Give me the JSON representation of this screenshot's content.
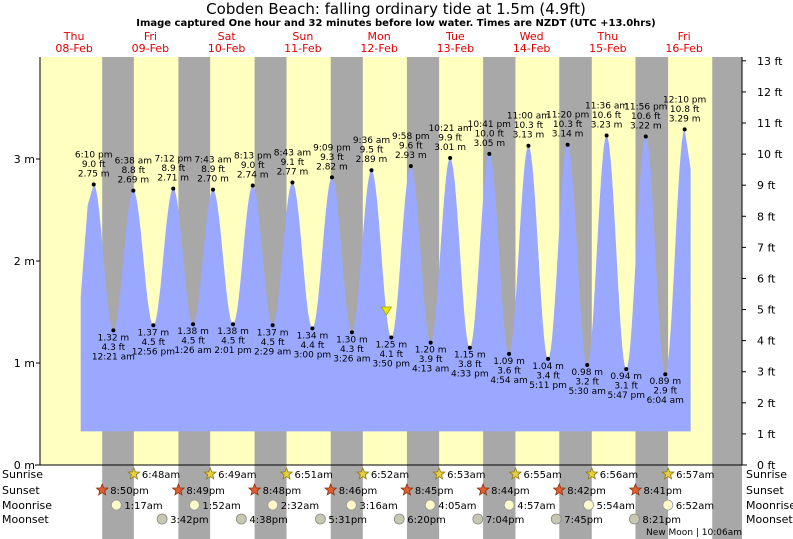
{
  "title": "Cobden Beach: falling  ordinary tide at 1.5m (4.9ft)",
  "subtitle": "Image captured One hour and 32 minutes before low water. Times are NZDT (UTC +13.0hrs)",
  "colors": {
    "day": "#ffffc0",
    "night": "#a8a8a8",
    "water": "#9aa9ff",
    "day_label": "#e00000"
  },
  "days": [
    {
      "name": "Thu",
      "date": "08-Feb"
    },
    {
      "name": "Fri",
      "date": "09-Feb"
    },
    {
      "name": "Sat",
      "date": "10-Feb"
    },
    {
      "name": "Sun",
      "date": "11-Feb"
    },
    {
      "name": "Mon",
      "date": "12-Feb"
    },
    {
      "name": "Tue",
      "date": "13-Feb"
    },
    {
      "name": "Wed",
      "date": "14-Feb"
    },
    {
      "name": "Thu",
      "date": "15-Feb"
    },
    {
      "name": "Fri",
      "date": "16-Feb"
    }
  ],
  "chart_data": {
    "type": "area",
    "x_axis": "time (days from 08-Feb 00:00 NZDT)",
    "y_left": {
      "unit": "m",
      "ticks": [
        "0 m",
        "1 m",
        "2 m",
        "3 m"
      ]
    },
    "y_right": {
      "unit": "ft",
      "ticks": [
        "0 ft",
        "1 ft",
        "2 ft",
        "3 ft",
        "4 ft",
        "5 ft",
        "6 ft",
        "7 ft",
        "8 ft",
        "9 ft",
        "10 ft",
        "11 ft",
        "12 ft",
        "13 ft"
      ]
    },
    "ylim_m": [
      0,
      4.0
    ],
    "current": {
      "time": "12-Feb 2:18pm",
      "height_m": 1.5
    },
    "tides": [
      {
        "type": "high",
        "time": "6:10 pm",
        "day": 0,
        "m": "2.75 m",
        "ft": "9.0 ft",
        "val": 2.75
      },
      {
        "type": "low",
        "time": "12:21 am",
        "day": 1,
        "m": "1.32 m",
        "ft": "4.3 ft",
        "val": 1.32
      },
      {
        "type": "high",
        "time": "6:38 am",
        "day": 1,
        "m": "2.69 m",
        "ft": "8.8 ft",
        "val": 2.69
      },
      {
        "type": "low",
        "time": "12:56 pm",
        "day": 1,
        "m": "1.37 m",
        "ft": "4.5 ft",
        "val": 1.37
      },
      {
        "type": "high",
        "time": "7:12 pm",
        "day": 1,
        "m": "2.71 m",
        "ft": "8.9 ft",
        "val": 2.71
      },
      {
        "type": "low",
        "time": "1:26 am",
        "day": 2,
        "m": "1.38 m",
        "ft": "4.5 ft",
        "val": 1.38
      },
      {
        "type": "high",
        "time": "7:43 am",
        "day": 2,
        "m": "2.70 m",
        "ft": "8.9 ft",
        "val": 2.7
      },
      {
        "type": "low",
        "time": "2:01 pm",
        "day": 2,
        "m": "1.38 m",
        "ft": "4.5 ft",
        "val": 1.38
      },
      {
        "type": "high",
        "time": "8:13 pm",
        "day": 2,
        "m": "2.74 m",
        "ft": "9.0 ft",
        "val": 2.74
      },
      {
        "type": "low",
        "time": "2:29 am",
        "day": 3,
        "m": "1.37 m",
        "ft": "4.5 ft",
        "val": 1.37
      },
      {
        "type": "high",
        "time": "8:43 am",
        "day": 3,
        "m": "2.77 m",
        "ft": "9.1 ft",
        "val": 2.77
      },
      {
        "type": "low",
        "time": "3:00 pm",
        "day": 3,
        "m": "1.34 m",
        "ft": "4.4 ft",
        "val": 1.34
      },
      {
        "type": "high",
        "time": "9:09 pm",
        "day": 3,
        "m": "2.82 m",
        "ft": "9.3 ft",
        "val": 2.82
      },
      {
        "type": "low",
        "time": "3:26 am",
        "day": 4,
        "m": "1.30 m",
        "ft": "4.3 ft",
        "val": 1.3
      },
      {
        "type": "high",
        "time": "9:36 am",
        "day": 4,
        "m": "2.89 m",
        "ft": "9.5 ft",
        "val": 2.89
      },
      {
        "type": "low",
        "time": "3:50 pm",
        "day": 4,
        "m": "1.25 m",
        "ft": "4.1 ft",
        "val": 1.25
      },
      {
        "type": "high",
        "time": "9:58 pm",
        "day": 4,
        "m": "2.93 m",
        "ft": "9.6 ft",
        "val": 2.93
      },
      {
        "type": "low",
        "time": "4:13 am",
        "day": 5,
        "m": "1.20 m",
        "ft": "3.9 ft",
        "val": 1.2
      },
      {
        "type": "high",
        "time": "10:21 am",
        "day": 5,
        "m": "3.01 m",
        "ft": "9.9 ft",
        "val": 3.01
      },
      {
        "type": "low",
        "time": "4:33 pm",
        "day": 5,
        "m": "1.15 m",
        "ft": "3.8 ft",
        "val": 1.15
      },
      {
        "type": "high",
        "time": "10:41 pm",
        "day": 5,
        "m": "3.05 m",
        "ft": "10.0 ft",
        "val": 3.05
      },
      {
        "type": "low",
        "time": "4:54 am",
        "day": 6,
        "m": "1.09 m",
        "ft": "3.6 ft",
        "val": 1.09
      },
      {
        "type": "high",
        "time": "11:00 am",
        "day": 6,
        "m": "3.13 m",
        "ft": "10.3 ft",
        "val": 3.13
      },
      {
        "type": "low",
        "time": "5:11 pm",
        "day": 6,
        "m": "1.04 m",
        "ft": "3.4 ft",
        "val": 1.04
      },
      {
        "type": "high",
        "time": "11:20 pm",
        "day": 6,
        "m": "3.14 m",
        "ft": "10.3 ft",
        "val": 3.14
      },
      {
        "type": "low",
        "time": "5:30 am",
        "day": 7,
        "m": "0.98 m",
        "ft": "3.2 ft",
        "val": 0.98
      },
      {
        "type": "high",
        "time": "11:36 am",
        "day": 7,
        "m": "3.23 m",
        "ft": "10.6 ft",
        "val": 3.23
      },
      {
        "type": "low",
        "time": "5:47 pm",
        "day": 7,
        "m": "0.94 m",
        "ft": "3.1 ft",
        "val": 0.94
      },
      {
        "type": "high",
        "time": "11:56 pm",
        "day": 7,
        "m": "3.22 m",
        "ft": "10.6 ft",
        "val": 3.22
      },
      {
        "type": "low",
        "time": "6:04 am",
        "day": 8,
        "m": "0.89 m",
        "ft": "2.9 ft",
        "val": 0.89
      },
      {
        "type": "high",
        "time": "12:10 pm",
        "day": 8,
        "m": "3.29 m",
        "ft": "10.8 ft",
        "val": 3.29
      }
    ]
  },
  "rows": {
    "labels": [
      "Sunrise",
      "Sunset",
      "Moonrise",
      "Moonset"
    ],
    "sunrise": [
      {
        "day": 1,
        "time": "6:48am"
      },
      {
        "day": 2,
        "time": "6:49am"
      },
      {
        "day": 3,
        "time": "6:51am"
      },
      {
        "day": 4,
        "time": "6:52am"
      },
      {
        "day": 5,
        "time": "6:53am"
      },
      {
        "day": 6,
        "time": "6:55am"
      },
      {
        "day": 7,
        "time": "6:56am"
      },
      {
        "day": 8,
        "time": "6:57am"
      }
    ],
    "sunset": [
      {
        "day": 0,
        "time": "8:50pm"
      },
      {
        "day": 1,
        "time": "8:49pm"
      },
      {
        "day": 2,
        "time": "8:48pm"
      },
      {
        "day": 3,
        "time": "8:46pm"
      },
      {
        "day": 4,
        "time": "8:45pm"
      },
      {
        "day": 5,
        "time": "8:44pm"
      },
      {
        "day": 6,
        "time": "8:42pm"
      },
      {
        "day": 7,
        "time": "8:41pm"
      }
    ],
    "moonrise": [
      {
        "day": 1,
        "time": "1:17am"
      },
      {
        "day": 2,
        "time": "1:52am"
      },
      {
        "day": 3,
        "time": "2:32am"
      },
      {
        "day": 4,
        "time": "3:16am"
      },
      {
        "day": 5,
        "time": "4:05am"
      },
      {
        "day": 6,
        "time": "4:57am"
      },
      {
        "day": 7,
        "time": "5:54am"
      },
      {
        "day": 8,
        "time": "6:52am"
      }
    ],
    "moonset": [
      {
        "day": 1,
        "time": "3:42pm"
      },
      {
        "day": 2,
        "time": "4:38pm"
      },
      {
        "day": 3,
        "time": "5:31pm"
      },
      {
        "day": 4,
        "time": "6:20pm"
      },
      {
        "day": 5,
        "time": "7:04pm"
      },
      {
        "day": 6,
        "time": "7:45pm"
      },
      {
        "day": 7,
        "time": "8:21pm"
      }
    ]
  },
  "footer": "New Moon | 10:06am"
}
